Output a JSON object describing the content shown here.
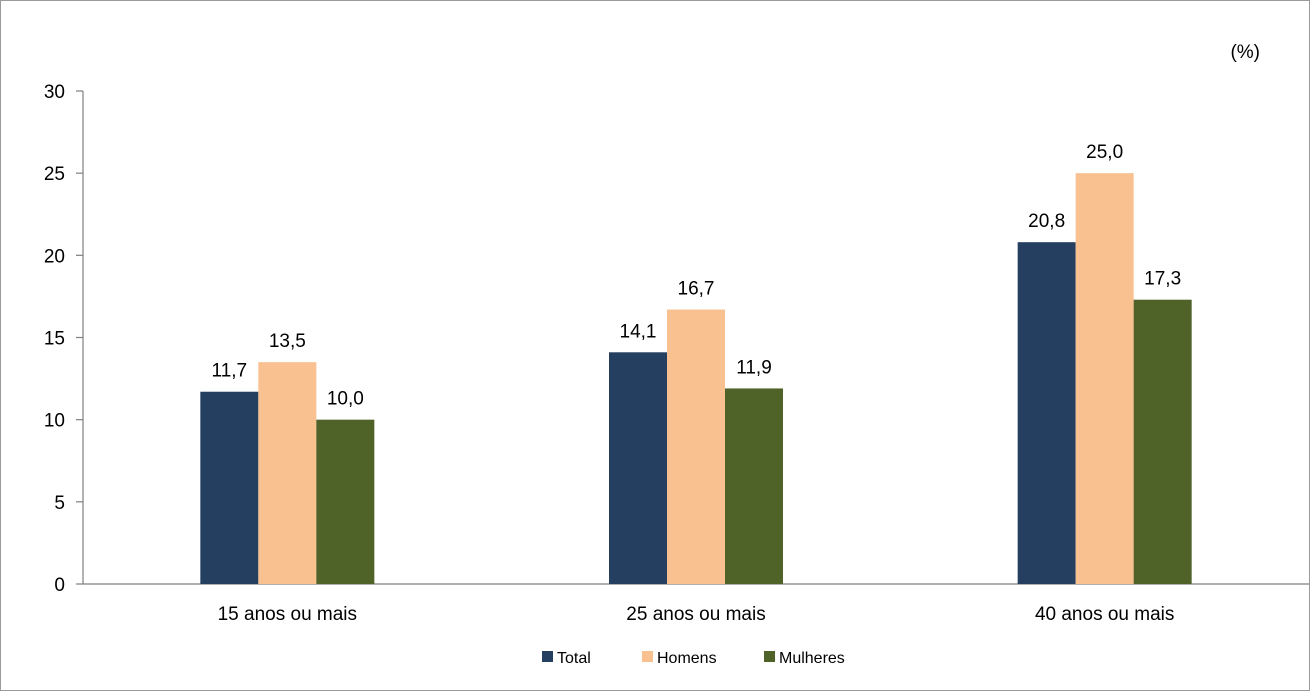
{
  "chart_data": {
    "type": "bar",
    "unit_label": "(%)",
    "categories": [
      "15 anos ou mais",
      "25 anos ou mais",
      "40 anos ou mais"
    ],
    "series": [
      {
        "name": "Total",
        "color": "#243f60",
        "values": [
          11.7,
          14.1,
          20.8
        ],
        "labels": [
          "11,7",
          "14,1",
          "20,8"
        ]
      },
      {
        "name": "Homens",
        "color": "#f9c090",
        "values": [
          13.5,
          16.7,
          25.0
        ],
        "labels": [
          "13,5",
          "16,7",
          "25,0"
        ]
      },
      {
        "name": "Mulheres",
        "color": "#4f6228",
        "values": [
          10.0,
          11.9,
          17.3
        ],
        "labels": [
          "10,0",
          "11,9",
          "17,3"
        ]
      }
    ],
    "ylim": [
      0,
      30
    ],
    "yticks": [
      0,
      5,
      10,
      15,
      20,
      25,
      30
    ],
    "grid": false,
    "legend": "bottom-center",
    "axis_color": "#7f7f7f"
  }
}
